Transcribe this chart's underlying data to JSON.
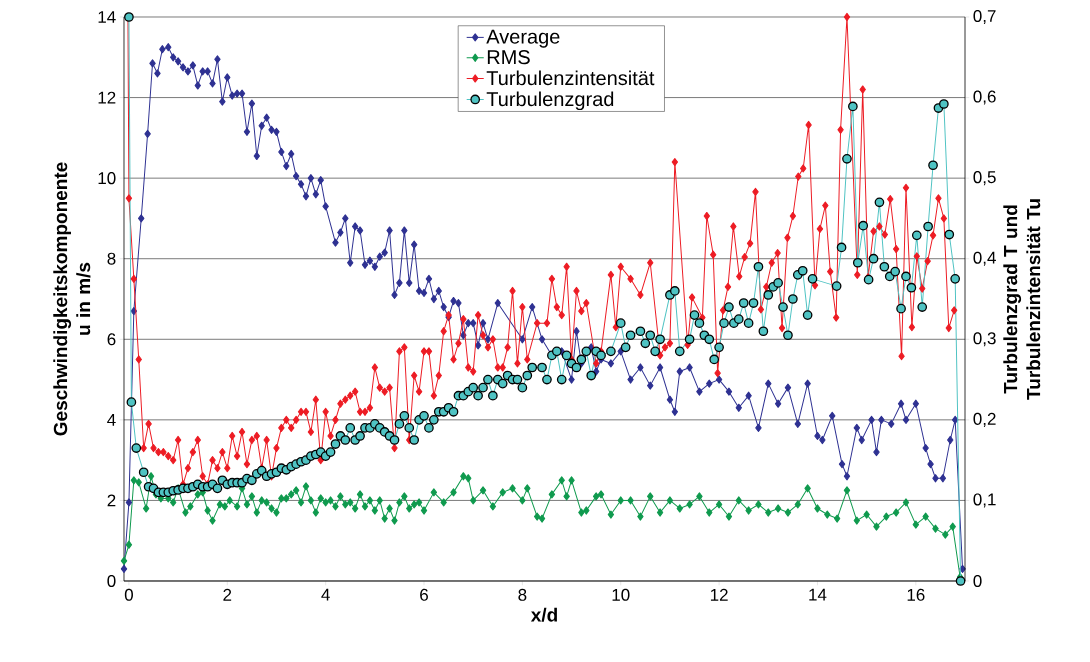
{
  "chart_data": {
    "type": "line",
    "xlabel": "x/d",
    "ylabel": "Geschwindigkeitskomponente u in m/s",
    "y2label": "Turbulenzgrad T und Turbulenzintensität Tu",
    "xlim": [
      -0.1,
      17
    ],
    "xticks": [
      0,
      2,
      4,
      6,
      8,
      10,
      12,
      14,
      16
    ],
    "ylim": [
      0,
      14
    ],
    "yticks": [
      0,
      2,
      4,
      6,
      8,
      10,
      12,
      14
    ],
    "y2lim": [
      0,
      0.7
    ],
    "y2ticks": [
      0,
      {
        "value": 0.1,
        "label": "0,1"
      },
      {
        "value": 0.2,
        "label": "0,2"
      },
      {
        "value": 0.3,
        "label": "0,3"
      },
      {
        "value": 0.4,
        "label": "0,4"
      },
      {
        "value": 0.5,
        "label": "0,5"
      },
      {
        "value": 0.6,
        "label": "0,6"
      },
      {
        "value": 0.7,
        "label": "0,7"
      }
    ],
    "grid": "y",
    "legend": "top",
    "line_style": "solid",
    "series": [
      {
        "name": "Average",
        "color": "#2e3192",
        "marker": "diamond",
        "x": [
          -0.1,
          0,
          0.1,
          0.25,
          0.38,
          0.48,
          0.58,
          0.68,
          0.8,
          0.9,
          1.0,
          1.1,
          1.2,
          1.3,
          1.4,
          1.5,
          1.6,
          1.7,
          1.8,
          1.9,
          2.0,
          2.1,
          2.2,
          2.3,
          2.4,
          2.5,
          2.6,
          2.7,
          2.8,
          2.9,
          3.0,
          3.1,
          3.2,
          3.3,
          3.4,
          3.5,
          3.6,
          3.7,
          3.8,
          3.9,
          4.0,
          4.2,
          4.3,
          4.4,
          4.5,
          4.6,
          4.7,
          4.8,
          4.9,
          5.0,
          5.1,
          5.2,
          5.3,
          5.4,
          5.5,
          5.6,
          5.7,
          5.8,
          5.9,
          6.0,
          6.1,
          6.2,
          6.3,
          6.4,
          6.5,
          6.6,
          6.7,
          6.8,
          6.9,
          7.0,
          7.1,
          7.2,
          7.3,
          7.5,
          8.0,
          8.2,
          8.4,
          8.6,
          8.8,
          9.0,
          9.1,
          9.2,
          9.4,
          9.5,
          9.6,
          9.8,
          10.0,
          10.2,
          10.4,
          10.6,
          10.8,
          11.0,
          11.1,
          11.2,
          11.4,
          11.6,
          11.8,
          12.0,
          12.2,
          12.4,
          12.6,
          12.8,
          13.0,
          13.2,
          13.4,
          13.6,
          13.8,
          14.0,
          14.1,
          14.3,
          14.5,
          14.6,
          14.8,
          14.9,
          15.1,
          15.2,
          15.3,
          15.5,
          15.7,
          15.8,
          16.0,
          16.2,
          16.3,
          16.4,
          16.55,
          16.7,
          16.8,
          16.95
        ],
        "values": [
          0.3,
          1.95,
          6.7,
          9.0,
          11.1,
          12.85,
          12.6,
          13.2,
          13.25,
          13.0,
          12.9,
          12.75,
          12.65,
          12.8,
          12.3,
          12.65,
          12.65,
          12.35,
          12.95,
          11.9,
          12.5,
          12.05,
          12.1,
          12.1,
          11.15,
          11.85,
          10.55,
          11.3,
          11.5,
          11.2,
          11.15,
          10.65,
          10.3,
          10.6,
          10.05,
          9.85,
          9.55,
          10.0,
          9.6,
          9.95,
          9.3,
          8.4,
          8.65,
          9.0,
          7.9,
          8.8,
          8.7,
          7.85,
          7.95,
          7.8,
          8.05,
          8.15,
          8.7,
          7.1,
          7.4,
          8.7,
          7.4,
          8.35,
          7.2,
          7.15,
          7.5,
          7.0,
          7.2,
          6.8,
          6.55,
          6.95,
          6.9,
          6.1,
          6.4,
          6.4,
          5.85,
          6.4,
          6.0,
          6.9,
          6.0,
          6.8,
          6.0,
          5.6,
          5.7,
          5.0,
          6.2,
          5.4,
          5.8,
          5.2,
          5.5,
          5.4,
          5.7,
          5.0,
          5.3,
          4.85,
          5.3,
          4.5,
          4.2,
          5.2,
          5.3,
          4.7,
          4.9,
          5.0,
          4.7,
          4.3,
          4.6,
          3.8,
          4.9,
          4.4,
          4.8,
          3.9,
          4.9,
          3.6,
          3.5,
          4.1,
          2.9,
          2.6,
          3.8,
          3.5,
          4.0,
          3.2,
          4.0,
          3.9,
          4.4,
          4.0,
          4.4,
          3.3,
          2.9,
          2.55,
          2.55,
          3.5,
          4.0,
          0.3
        ]
      },
      {
        "name": "RMS",
        "color": "#0f9a4e",
        "marker": "diamond",
        "x": [
          -0.1,
          0,
          0.1,
          0.2,
          0.35,
          0.45,
          0.55,
          0.65,
          0.8,
          0.9,
          1.0,
          1.15,
          1.25,
          1.4,
          1.5,
          1.6,
          1.7,
          1.85,
          1.95,
          2.05,
          2.2,
          2.3,
          2.4,
          2.5,
          2.6,
          2.7,
          2.8,
          2.9,
          3.0,
          3.1,
          3.2,
          3.3,
          3.4,
          3.5,
          3.6,
          3.7,
          3.8,
          3.9,
          4.0,
          4.1,
          4.2,
          4.3,
          4.4,
          4.5,
          4.6,
          4.7,
          4.8,
          4.9,
          5.0,
          5.1,
          5.2,
          5.3,
          5.4,
          5.5,
          5.6,
          5.7,
          5.8,
          5.9,
          6.0,
          6.2,
          6.4,
          6.6,
          6.8,
          6.9,
          7.0,
          7.2,
          7.4,
          7.6,
          7.8,
          8.0,
          8.1,
          8.3,
          8.4,
          8.6,
          8.8,
          8.9,
          9.0,
          9.2,
          9.3,
          9.5,
          9.6,
          9.8,
          10.0,
          10.2,
          10.4,
          10.6,
          10.8,
          11.0,
          11.2,
          11.4,
          11.6,
          11.8,
          12.0,
          12.2,
          12.4,
          12.6,
          12.8,
          13.0,
          13.2,
          13.4,
          13.6,
          13.8,
          14.0,
          14.2,
          14.4,
          14.6,
          14.8,
          15.0,
          15.2,
          15.4,
          15.6,
          15.8,
          16.0,
          16.2,
          16.4,
          16.6,
          16.75,
          16.9
        ],
        "values": [
          0.5,
          0.9,
          2.5,
          2.45,
          1.8,
          2.6,
          2.15,
          2.05,
          2.05,
          1.95,
          2.3,
          1.7,
          1.85,
          2.15,
          2.2,
          1.75,
          1.5,
          1.9,
          1.85,
          2.0,
          1.85,
          2.3,
          1.9,
          2.1,
          1.7,
          2.0,
          1.95,
          1.8,
          1.7,
          2.05,
          2.05,
          2.15,
          2.25,
          1.95,
          2.35,
          2.0,
          1.7,
          2.05,
          1.95,
          2.0,
          1.85,
          2.1,
          1.9,
          1.95,
          1.8,
          2.15,
          1.85,
          2.0,
          1.75,
          2.0,
          1.55,
          1.8,
          1.5,
          1.95,
          2.1,
          1.8,
          1.9,
          1.95,
          1.75,
          2.2,
          1.95,
          2.2,
          2.6,
          2.55,
          2.0,
          2.25,
          1.85,
          2.2,
          2.3,
          2.0,
          2.3,
          1.6,
          1.55,
          2.15,
          2.5,
          2.1,
          2.5,
          1.7,
          1.75,
          2.1,
          2.15,
          1.65,
          2.0,
          2.0,
          1.6,
          2.1,
          1.7,
          2.0,
          1.8,
          1.9,
          2.1,
          1.7,
          1.9,
          1.6,
          2.0,
          1.75,
          1.9,
          1.7,
          1.8,
          1.7,
          1.9,
          2.3,
          1.8,
          1.65,
          1.55,
          2.25,
          1.5,
          1.65,
          1.35,
          1.6,
          1.7,
          1.95,
          1.4,
          1.6,
          1.3,
          1.15,
          1.35,
          0.1
        ]
      },
      {
        "name": "Turbulenzintensität",
        "color": "#ed1c24",
        "marker": "diamond",
        "axis": "y2",
        "x": [
          -0.02,
          0.0,
          0.1,
          0.2,
          0.3,
          0.4,
          0.5,
          0.6,
          0.7,
          0.8,
          0.9,
          1.0,
          1.1,
          1.2,
          1.3,
          1.4,
          1.5,
          1.6,
          1.7,
          1.8,
          1.9,
          2.0,
          2.1,
          2.2,
          2.3,
          2.4,
          2.5,
          2.6,
          2.7,
          2.8,
          2.9,
          3.0,
          3.1,
          3.2,
          3.3,
          3.4,
          3.5,
          3.6,
          3.7,
          3.8,
          3.9,
          4.0,
          4.1,
          4.2,
          4.3,
          4.4,
          4.5,
          4.6,
          4.7,
          4.8,
          4.9,
          5.0,
          5.1,
          5.2,
          5.3,
          5.4,
          5.5,
          5.6,
          5.7,
          5.8,
          5.9,
          6.0,
          6.1,
          6.2,
          6.3,
          6.4,
          6.5,
          6.6,
          6.7,
          6.8,
          6.9,
          7.0,
          7.1,
          7.2,
          7.3,
          7.4,
          7.5,
          7.6,
          7.7,
          7.8,
          7.9,
          8.0,
          8.1,
          8.3,
          8.5,
          8.6,
          8.7,
          8.8,
          8.9,
          9.0,
          9.1,
          9.2,
          9.3,
          9.5,
          9.6,
          9.8,
          9.9,
          10.0,
          10.2,
          10.4,
          10.6,
          10.8,
          10.9,
          11.0,
          11.1,
          11.36,
          11.45,
          11.66,
          11.75,
          11.88,
          11.97,
          12.08,
          12.18,
          12.29,
          12.41,
          12.52,
          12.63,
          12.74,
          12.85,
          12.96,
          13.07,
          13.19,
          13.28,
          13.39,
          13.5,
          13.61,
          13.71,
          13.82,
          13.95,
          14.05,
          14.16,
          14.26,
          14.38,
          14.47,
          14.6,
          14.81,
          14.92,
          15.03,
          15.14,
          15.26,
          15.37,
          15.48,
          15.6,
          15.71,
          15.8,
          15.92,
          16.02,
          16.13,
          16.24,
          16.35,
          16.46,
          16.57,
          16.67,
          16.78
        ],
        "values": [
          0.7,
          0.475,
          0.375,
          0.275,
          0.165,
          0.195,
          0.165,
          0.16,
          0.16,
          0.155,
          0.15,
          0.175,
          0.12,
          0.14,
          0.16,
          0.175,
          0.13,
          0.12,
          0.15,
          0.14,
          0.16,
          0.14,
          0.18,
          0.155,
          0.185,
          0.145,
          0.175,
          0.18,
          0.14,
          0.175,
          0.13,
          0.165,
          0.19,
          0.2,
          0.19,
          0.2,
          0.21,
          0.21,
          0.185,
          0.225,
          0.15,
          0.21,
          0.18,
          0.2,
          0.22,
          0.225,
          0.23,
          0.235,
          0.21,
          0.21,
          0.215,
          0.265,
          0.24,
          0.235,
          0.24,
          0.165,
          0.285,
          0.29,
          0.175,
          0.255,
          0.235,
          0.285,
          0.285,
          0.23,
          0.255,
          0.31,
          0.33,
          0.275,
          0.295,
          0.325,
          0.265,
          0.26,
          0.33,
          0.305,
          0.29,
          0.3,
          0.265,
          0.265,
          0.29,
          0.36,
          0.27,
          0.34,
          0.275,
          0.32,
          0.32,
          0.375,
          0.34,
          0.33,
          0.39,
          0.275,
          0.36,
          0.335,
          0.345,
          0.27,
          0.285,
          0.38,
          0.315,
          0.39,
          0.375,
          0.355,
          0.395,
          0.28,
          0.29,
          0.295,
          0.52,
          0.293,
          0.352,
          0.327,
          0.453,
          0.405,
          0.258,
          0.336,
          0.365,
          0.44,
          0.378,
          0.402,
          0.419,
          0.483,
          0.337,
          0.365,
          0.395,
          0.407,
          0.314,
          0.426,
          0.453,
          0.502,
          0.512,
          0.566,
          0.367,
          0.437,
          0.466,
          0.384,
          0.327,
          0.56,
          0.7,
          0.38,
          0.61,
          0.377,
          0.434,
          0.44,
          0.43,
          0.474,
          0.412,
          0.279,
          0.488,
          0.315,
          0.403,
          0.363,
          0.397,
          0.429,
          0.475,
          0.45,
          0.314,
          0.336
        ]
      },
      {
        "name": "Turbulenzgrad",
        "color": "#4fc3c3",
        "marker": "circle",
        "axis": "y2",
        "x": [
          0.0,
          0.05,
          0.15,
          0.3,
          0.4,
          0.5,
          0.6,
          0.7,
          0.8,
          0.9,
          1.0,
          1.1,
          1.2,
          1.3,
          1.4,
          1.5,
          1.6,
          1.7,
          1.8,
          1.9,
          2.0,
          2.1,
          2.2,
          2.3,
          2.4,
          2.5,
          2.6,
          2.7,
          2.8,
          2.9,
          3.0,
          3.1,
          3.2,
          3.3,
          3.4,
          3.5,
          3.6,
          3.7,
          3.8,
          3.9,
          4.0,
          4.1,
          4.2,
          4.3,
          4.4,
          4.5,
          4.6,
          4.7,
          4.8,
          4.9,
          5.0,
          5.1,
          5.2,
          5.3,
          5.4,
          5.5,
          5.6,
          5.7,
          5.8,
          5.9,
          6.0,
          6.1,
          6.2,
          6.3,
          6.4,
          6.5,
          6.6,
          6.7,
          6.8,
          6.9,
          7.0,
          7.1,
          7.2,
          7.3,
          7.4,
          7.5,
          7.6,
          7.7,
          7.8,
          7.9,
          8.0,
          8.1,
          8.2,
          8.4,
          8.5,
          8.6,
          8.7,
          8.8,
          8.9,
          9.0,
          9.1,
          9.2,
          9.3,
          9.4,
          9.5,
          9.6,
          9.8,
          10.0,
          10.1,
          10.2,
          10.4,
          10.5,
          10.6,
          10.7,
          10.8,
          11.0,
          11.1,
          11.2,
          11.4,
          11.5,
          11.6,
          11.7,
          11.8,
          11.9,
          12.0,
          12.1,
          12.2,
          12.3,
          12.4,
          12.5,
          12.6,
          12.7,
          12.8,
          12.9,
          13.0,
          13.1,
          13.2,
          13.3,
          13.4,
          13.5,
          13.6,
          13.7,
          13.8,
          13.9,
          14.39,
          14.49,
          14.6,
          14.72,
          14.82,
          14.93,
          15.04,
          15.14,
          15.26,
          15.36,
          15.47,
          15.58,
          15.7,
          15.8,
          15.91,
          16.02,
          16.13,
          16.25,
          16.35,
          16.46,
          16.57,
          16.68,
          16.8,
          16.91
        ],
        "values": [
          0.7,
          0.222,
          0.165,
          0.135,
          0.117,
          0.115,
          0.11,
          0.11,
          0.11,
          0.112,
          0.113,
          0.115,
          0.115,
          0.117,
          0.12,
          0.117,
          0.117,
          0.12,
          0.115,
          0.125,
          0.12,
          0.122,
          0.122,
          0.122,
          0.127,
          0.125,
          0.133,
          0.137,
          0.13,
          0.133,
          0.135,
          0.14,
          0.138,
          0.142,
          0.145,
          0.148,
          0.15,
          0.155,
          0.157,
          0.16,
          0.155,
          0.16,
          0.17,
          0.18,
          0.175,
          0.19,
          0.175,
          0.18,
          0.19,
          0.19,
          0.195,
          0.19,
          0.185,
          0.18,
          0.175,
          0.195,
          0.205,
          0.19,
          0.175,
          0.2,
          0.205,
          0.19,
          0.2,
          0.21,
          0.21,
          0.215,
          0.21,
          0.23,
          0.23,
          0.235,
          0.24,
          0.23,
          0.24,
          0.25,
          0.23,
          0.25,
          0.245,
          0.255,
          0.25,
          0.25,
          0.24,
          0.255,
          0.265,
          0.265,
          0.25,
          0.28,
          0.285,
          0.25,
          0.28,
          0.27,
          0.265,
          0.275,
          0.285,
          0.255,
          0.285,
          0.28,
          0.285,
          0.32,
          0.29,
          0.305,
          0.31,
          0.295,
          0.305,
          0.285,
          0.3,
          0.355,
          0.36,
          0.285,
          0.3,
          0.33,
          0.32,
          0.305,
          0.3,
          0.275,
          0.29,
          0.32,
          0.34,
          0.32,
          0.325,
          0.345,
          0.32,
          0.345,
          0.39,
          0.31,
          0.355,
          0.365,
          0.37,
          0.34,
          0.305,
          0.35,
          0.38,
          0.385,
          0.33,
          0.375,
          0.366,
          0.414,
          0.524,
          0.589,
          0.395,
          0.441,
          0.374,
          0.4,
          0.47,
          0.39,
          0.378,
          0.384,
          0.338,
          0.378,
          0.364,
          0.429,
          0.34,
          0.44,
          0.516,
          0.587,
          0.592,
          0.43,
          0.375,
          0
        ]
      }
    ]
  }
}
